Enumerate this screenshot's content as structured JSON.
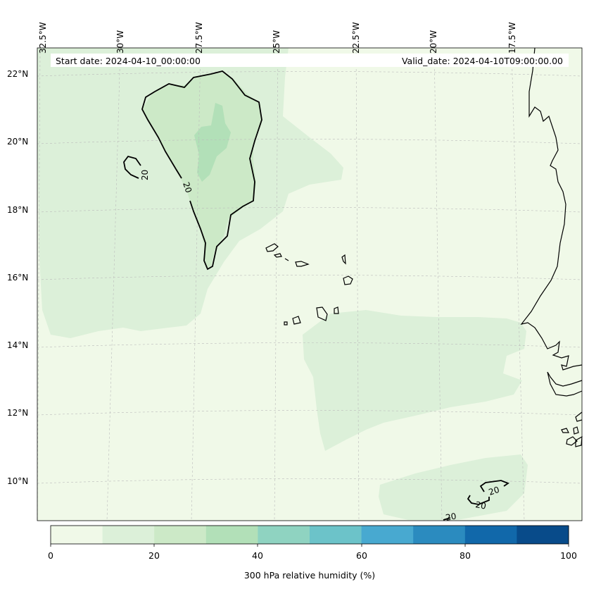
{
  "map": {
    "lon_labels": [
      "32.5°W",
      "30°W",
      "27.5°W",
      "25°W",
      "22.5°W",
      "20°W",
      "17.5°W"
    ],
    "lat_labels": [
      "22°N",
      "20°N",
      "18°N",
      "16°N",
      "14°N",
      "12°N",
      "10°N"
    ],
    "start_date": "Start date: 2024-04-10_00:00:00",
    "valid_date": "Valid_date: 2024-04-10T09:00:00.00",
    "contour_level_label": "20"
  },
  "colorbar": {
    "ticks": [
      "0",
      "20",
      "40",
      "60",
      "80",
      "100"
    ],
    "label": "300 hPa relative humidity (%)",
    "colors": [
      "#f0f9e8",
      "#dcf0d9",
      "#cce9c7",
      "#b2e0b8",
      "#8fd3c1",
      "#6cc3c9",
      "#48a9d0",
      "#2b8bbf",
      "#1168aa",
      "#084b8a"
    ]
  },
  "colors": {
    "land_outline": "#000000",
    "grid": "#bbbbbb"
  }
}
